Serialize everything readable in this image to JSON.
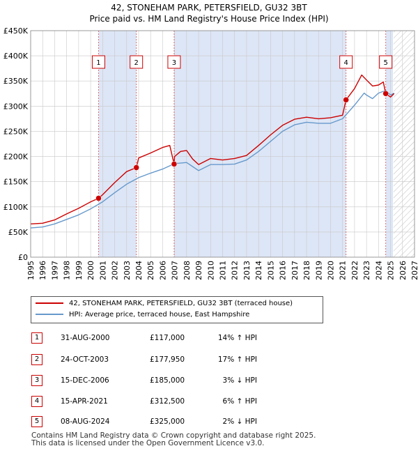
{
  "page": {
    "title_line1": "42, STONEHAM PARK, PETERSFIELD, GU32 3BT",
    "title_line2": "Price paid vs. HM Land Registry's House Price Index (HPI)"
  },
  "colors": {
    "red": "#cc0000",
    "blue": "#6699cc",
    "shade": "#dde6f6",
    "grid": "#c8c8c8",
    "hatch": "#bbbbbb"
  },
  "chart_data": {
    "type": "line",
    "title": "42, STONEHAM PARK, PETERSFIELD, GU32 3BT",
    "subtitle": "Price paid vs. HM Land Registry's House Price Index (HPI)",
    "xlabel": "",
    "ylabel": "",
    "xlim": [
      1995,
      2027
    ],
    "ylim": [
      0,
      450000
    ],
    "grid": true,
    "y_ticks": [
      {
        "value": 0,
        "label": "£0"
      },
      {
        "value": 50000,
        "label": "£50K"
      },
      {
        "value": 100000,
        "label": "£100K"
      },
      {
        "value": 150000,
        "label": "£150K"
      },
      {
        "value": 200000,
        "label": "£200K"
      },
      {
        "value": 250000,
        "label": "£250K"
      },
      {
        "value": 300000,
        "label": "£300K"
      },
      {
        "value": 350000,
        "label": "£350K"
      },
      {
        "value": 400000,
        "label": "£400K"
      },
      {
        "value": 450000,
        "label": "£450K"
      }
    ],
    "x_ticks": [
      "1995",
      "1996",
      "1997",
      "1998",
      "1999",
      "2000",
      "2001",
      "2002",
      "2003",
      "2004",
      "2005",
      "2006",
      "2007",
      "2008",
      "2009",
      "2010",
      "2011",
      "2012",
      "2013",
      "2014",
      "2015",
      "2016",
      "2017",
      "2018",
      "2019",
      "2020",
      "2021",
      "2022",
      "2023",
      "2024",
      "2025",
      "2026",
      "2027"
    ],
    "shaded_periods": [
      [
        2000.66,
        2003.81
      ],
      [
        2006.96,
        2021.29
      ],
      [
        2024.6,
        2025.2
      ]
    ],
    "future_hatch_from": 2025.25,
    "series": [
      {
        "name": "42, STONEHAM PARK, PETERSFIELD, GU32 3BT (terraced house)",
        "color": "#cc0000",
        "points": [
          [
            1995,
            66000
          ],
          [
            1996,
            67500
          ],
          [
            1997,
            74000
          ],
          [
            1998,
            86000
          ],
          [
            1999,
            97000
          ],
          [
            2000,
            110000
          ],
          [
            2000.66,
            117000
          ],
          [
            2001,
            124000
          ],
          [
            2002,
            148000
          ],
          [
            2003,
            170000
          ],
          [
            2003.81,
            177950
          ],
          [
            2004,
            197000
          ],
          [
            2005,
            207000
          ],
          [
            2006,
            218000
          ],
          [
            2006.6,
            222000
          ],
          [
            2006.96,
            185000
          ],
          [
            2007,
            200000
          ],
          [
            2007.5,
            210000
          ],
          [
            2008,
            212000
          ],
          [
            2008.5,
            195000
          ],
          [
            2009,
            184000
          ],
          [
            2010,
            196000
          ],
          [
            2011,
            193000
          ],
          [
            2012,
            196000
          ],
          [
            2013,
            202000
          ],
          [
            2014,
            222000
          ],
          [
            2015,
            243000
          ],
          [
            2016,
            262000
          ],
          [
            2017,
            274000
          ],
          [
            2018,
            278000
          ],
          [
            2019,
            275000
          ],
          [
            2020,
            277000
          ],
          [
            2021,
            282000
          ],
          [
            2021.29,
            312500
          ],
          [
            2022,
            335000
          ],
          [
            2022.6,
            362000
          ],
          [
            2023,
            352000
          ],
          [
            2023.5,
            340000
          ],
          [
            2024,
            342000
          ],
          [
            2024.4,
            348000
          ],
          [
            2024.6,
            325000
          ],
          [
            2025,
            318000
          ],
          [
            2025.3,
            325000
          ]
        ]
      },
      {
        "name": "HPI: Average price, terraced house, East Hampshire",
        "color": "#6699cc",
        "points": [
          [
            1995,
            58000
          ],
          [
            1996,
            60000
          ],
          [
            1997,
            66000
          ],
          [
            1998,
            75000
          ],
          [
            1999,
            84000
          ],
          [
            2000,
            96000
          ],
          [
            2001,
            110000
          ],
          [
            2002,
            128000
          ],
          [
            2003,
            145000
          ],
          [
            2004,
            158000
          ],
          [
            2005,
            167000
          ],
          [
            2006,
            175000
          ],
          [
            2007,
            186000
          ],
          [
            2008,
            188000
          ],
          [
            2008.5,
            180000
          ],
          [
            2009,
            172000
          ],
          [
            2010,
            184000
          ],
          [
            2011,
            184000
          ],
          [
            2012,
            185000
          ],
          [
            2013,
            193000
          ],
          [
            2014,
            210000
          ],
          [
            2015,
            230000
          ],
          [
            2016,
            250000
          ],
          [
            2017,
            263000
          ],
          [
            2018,
            268000
          ],
          [
            2019,
            266000
          ],
          [
            2020,
            266000
          ],
          [
            2021,
            275000
          ],
          [
            2022,
            302000
          ],
          [
            2022.8,
            326000
          ],
          [
            2023,
            322000
          ],
          [
            2023.5,
            315000
          ],
          [
            2024,
            326000
          ],
          [
            2024.6,
            331000
          ],
          [
            2025,
            322000
          ],
          [
            2025.3,
            326000
          ]
        ]
      }
    ],
    "sales": [
      {
        "id": "1",
        "x": 2000.66,
        "price": 117000
      },
      {
        "id": "2",
        "x": 2003.81,
        "price": 177950
      },
      {
        "id": "3",
        "x": 2006.96,
        "price": 185000
      },
      {
        "id": "4",
        "x": 2021.29,
        "price": 312500
      },
      {
        "id": "5",
        "x": 2024.6,
        "price": 325000
      }
    ]
  },
  "legend": {
    "items": [
      {
        "label": "42, STONEHAM PARK, PETERSFIELD, GU32 3BT (terraced house)"
      },
      {
        "label": "HPI: Average price, terraced house, East Hampshire"
      }
    ]
  },
  "transactions": [
    {
      "id": "1",
      "date": "31-AUG-2000",
      "price": "£117,000",
      "hpi": "14% ↑ HPI"
    },
    {
      "id": "2",
      "date": "24-OCT-2003",
      "price": "£177,950",
      "hpi": "17% ↑ HPI"
    },
    {
      "id": "3",
      "date": "15-DEC-2006",
      "price": "£185,000",
      "hpi": "3% ↓ HPI"
    },
    {
      "id": "4",
      "date": "15-APR-2021",
      "price": "£312,500",
      "hpi": "6% ↑ HPI"
    },
    {
      "id": "5",
      "date": "08-AUG-2024",
      "price": "£325,000",
      "hpi": "2% ↓ HPI"
    }
  ],
  "footer": {
    "line1": "Contains HM Land Registry data © Crown copyright and database right 2025.",
    "line2": "This data is licensed under the Open Government Licence v3.0."
  }
}
